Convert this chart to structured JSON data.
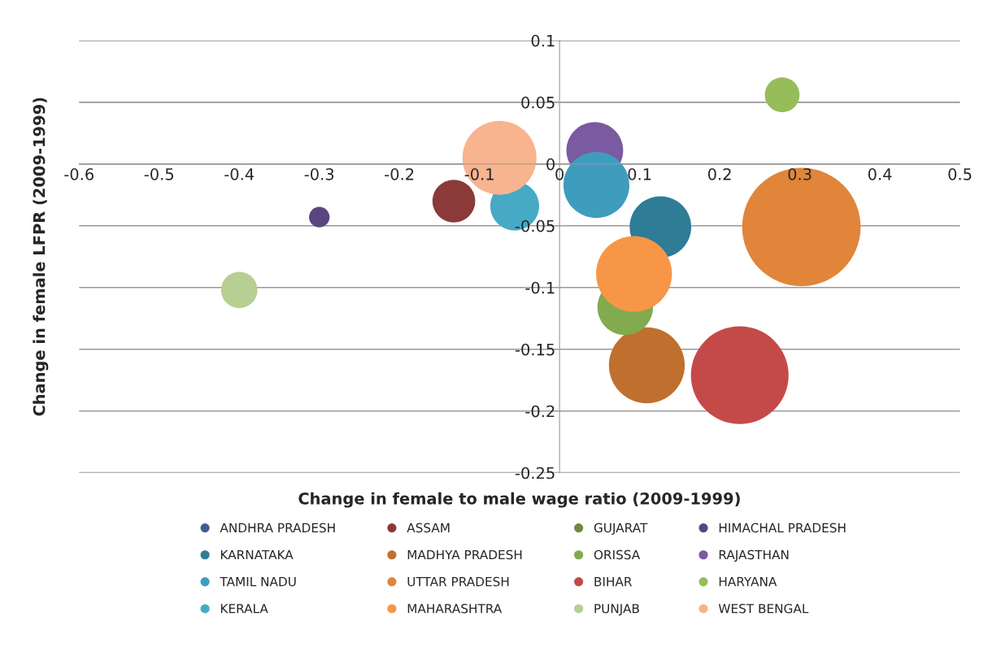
{
  "chart_data": {
    "type": "bubble",
    "xlabel": "Change in female to male wage ratio (2009-1999)",
    "ylabel": "Change in female LFPR (2009-1999)",
    "xlim": [
      -0.6,
      0.5
    ],
    "xticks": [
      -0.6,
      -0.5,
      -0.4,
      -0.3,
      -0.2,
      -0.1,
      0,
      0.1,
      0.2,
      0.3,
      0.4,
      0.5
    ],
    "ylim": [
      -0.25,
      0.1
    ],
    "yticks": [
      -0.25,
      -0.2,
      -0.15,
      -0.1,
      -0.05,
      0,
      0.05,
      0.1
    ],
    "grid": "y",
    "legend": "bottom",
    "marker": "circle",
    "series": [
      {
        "name": "ANDHRA PRADESH",
        "color": "#3f5f94",
        "x": [
          null
        ],
        "values": [
          null
        ],
        "sizes": [
          null
        ]
      },
      {
        "name": "ASSAM",
        "color": "#8b3a39",
        "x": [
          -0.132
        ],
        "values": [
          -0.03
        ],
        "sizes": [
          0.13
        ]
      },
      {
        "name": "GUJARAT",
        "color": "#6f8a3a",
        "x": [
          null
        ],
        "values": [
          null
        ],
        "sizes": [
          null
        ]
      },
      {
        "name": "HIMACHAL PRADESH",
        "color": "#5a4580",
        "x": [
          -0.3
        ],
        "values": [
          -0.043
        ],
        "sizes": [
          0.03
        ]
      },
      {
        "name": "KARNATAKA",
        "color": "#2e7c96",
        "x": [
          0.126
        ],
        "values": [
          -0.051
        ],
        "sizes": [
          0.27
        ]
      },
      {
        "name": "MADHYA PRADESH",
        "color": "#c0702e",
        "x": [
          0.109
        ],
        "values": [
          -0.163
        ],
        "sizes": [
          0.41
        ]
      },
      {
        "name": "ORISSA",
        "color": "#82aa4e",
        "x": [
          0.082
        ],
        "values": [
          -0.116
        ],
        "sizes": [
          0.22
        ]
      },
      {
        "name": "RAJASTHAN",
        "color": "#7a5aa0",
        "x": [
          0.044
        ],
        "values": [
          0.011
        ],
        "sizes": [
          0.23
        ]
      },
      {
        "name": "TAMIL NADU",
        "color": "#3f9cbd",
        "x": [
          0.046
        ],
        "values": [
          -0.017
        ],
        "sizes": [
          0.31
        ]
      },
      {
        "name": "UTTAR PRADESH",
        "color": "#e0853a",
        "x": [
          0.302
        ],
        "values": [
          -0.051
        ],
        "sizes": [
          1
        ]
      },
      {
        "name": "BIHAR",
        "color": "#c44a4a",
        "x": [
          0.225
        ],
        "values": [
          -0.171
        ],
        "sizes": [
          0.68
        ]
      },
      {
        "name": "HARYANA",
        "color": "#95bd5a",
        "x": [
          0.278
        ],
        "values": [
          0.056
        ],
        "sizes": [
          0.086
        ]
      },
      {
        "name": "KERALA",
        "color": "#46aac5",
        "x": [
          -0.056
        ],
        "values": [
          -0.034
        ],
        "sizes": [
          0.17
        ]
      },
      {
        "name": "MAHARASHTRA",
        "color": "#f79646",
        "x": [
          0.093
        ],
        "values": [
          -0.089
        ],
        "sizes": [
          0.41
        ]
      },
      {
        "name": "PUNJAB",
        "color": "#b7cf92",
        "x": [
          -0.4
        ],
        "values": [
          -0.102
        ],
        "sizes": [
          0.094
        ]
      },
      {
        "name": "WEST BENGAL",
        "color": "#f8b38f",
        "x": [
          -0.075
        ],
        "values": [
          0.005
        ],
        "sizes": [
          0.39
        ]
      }
    ]
  }
}
